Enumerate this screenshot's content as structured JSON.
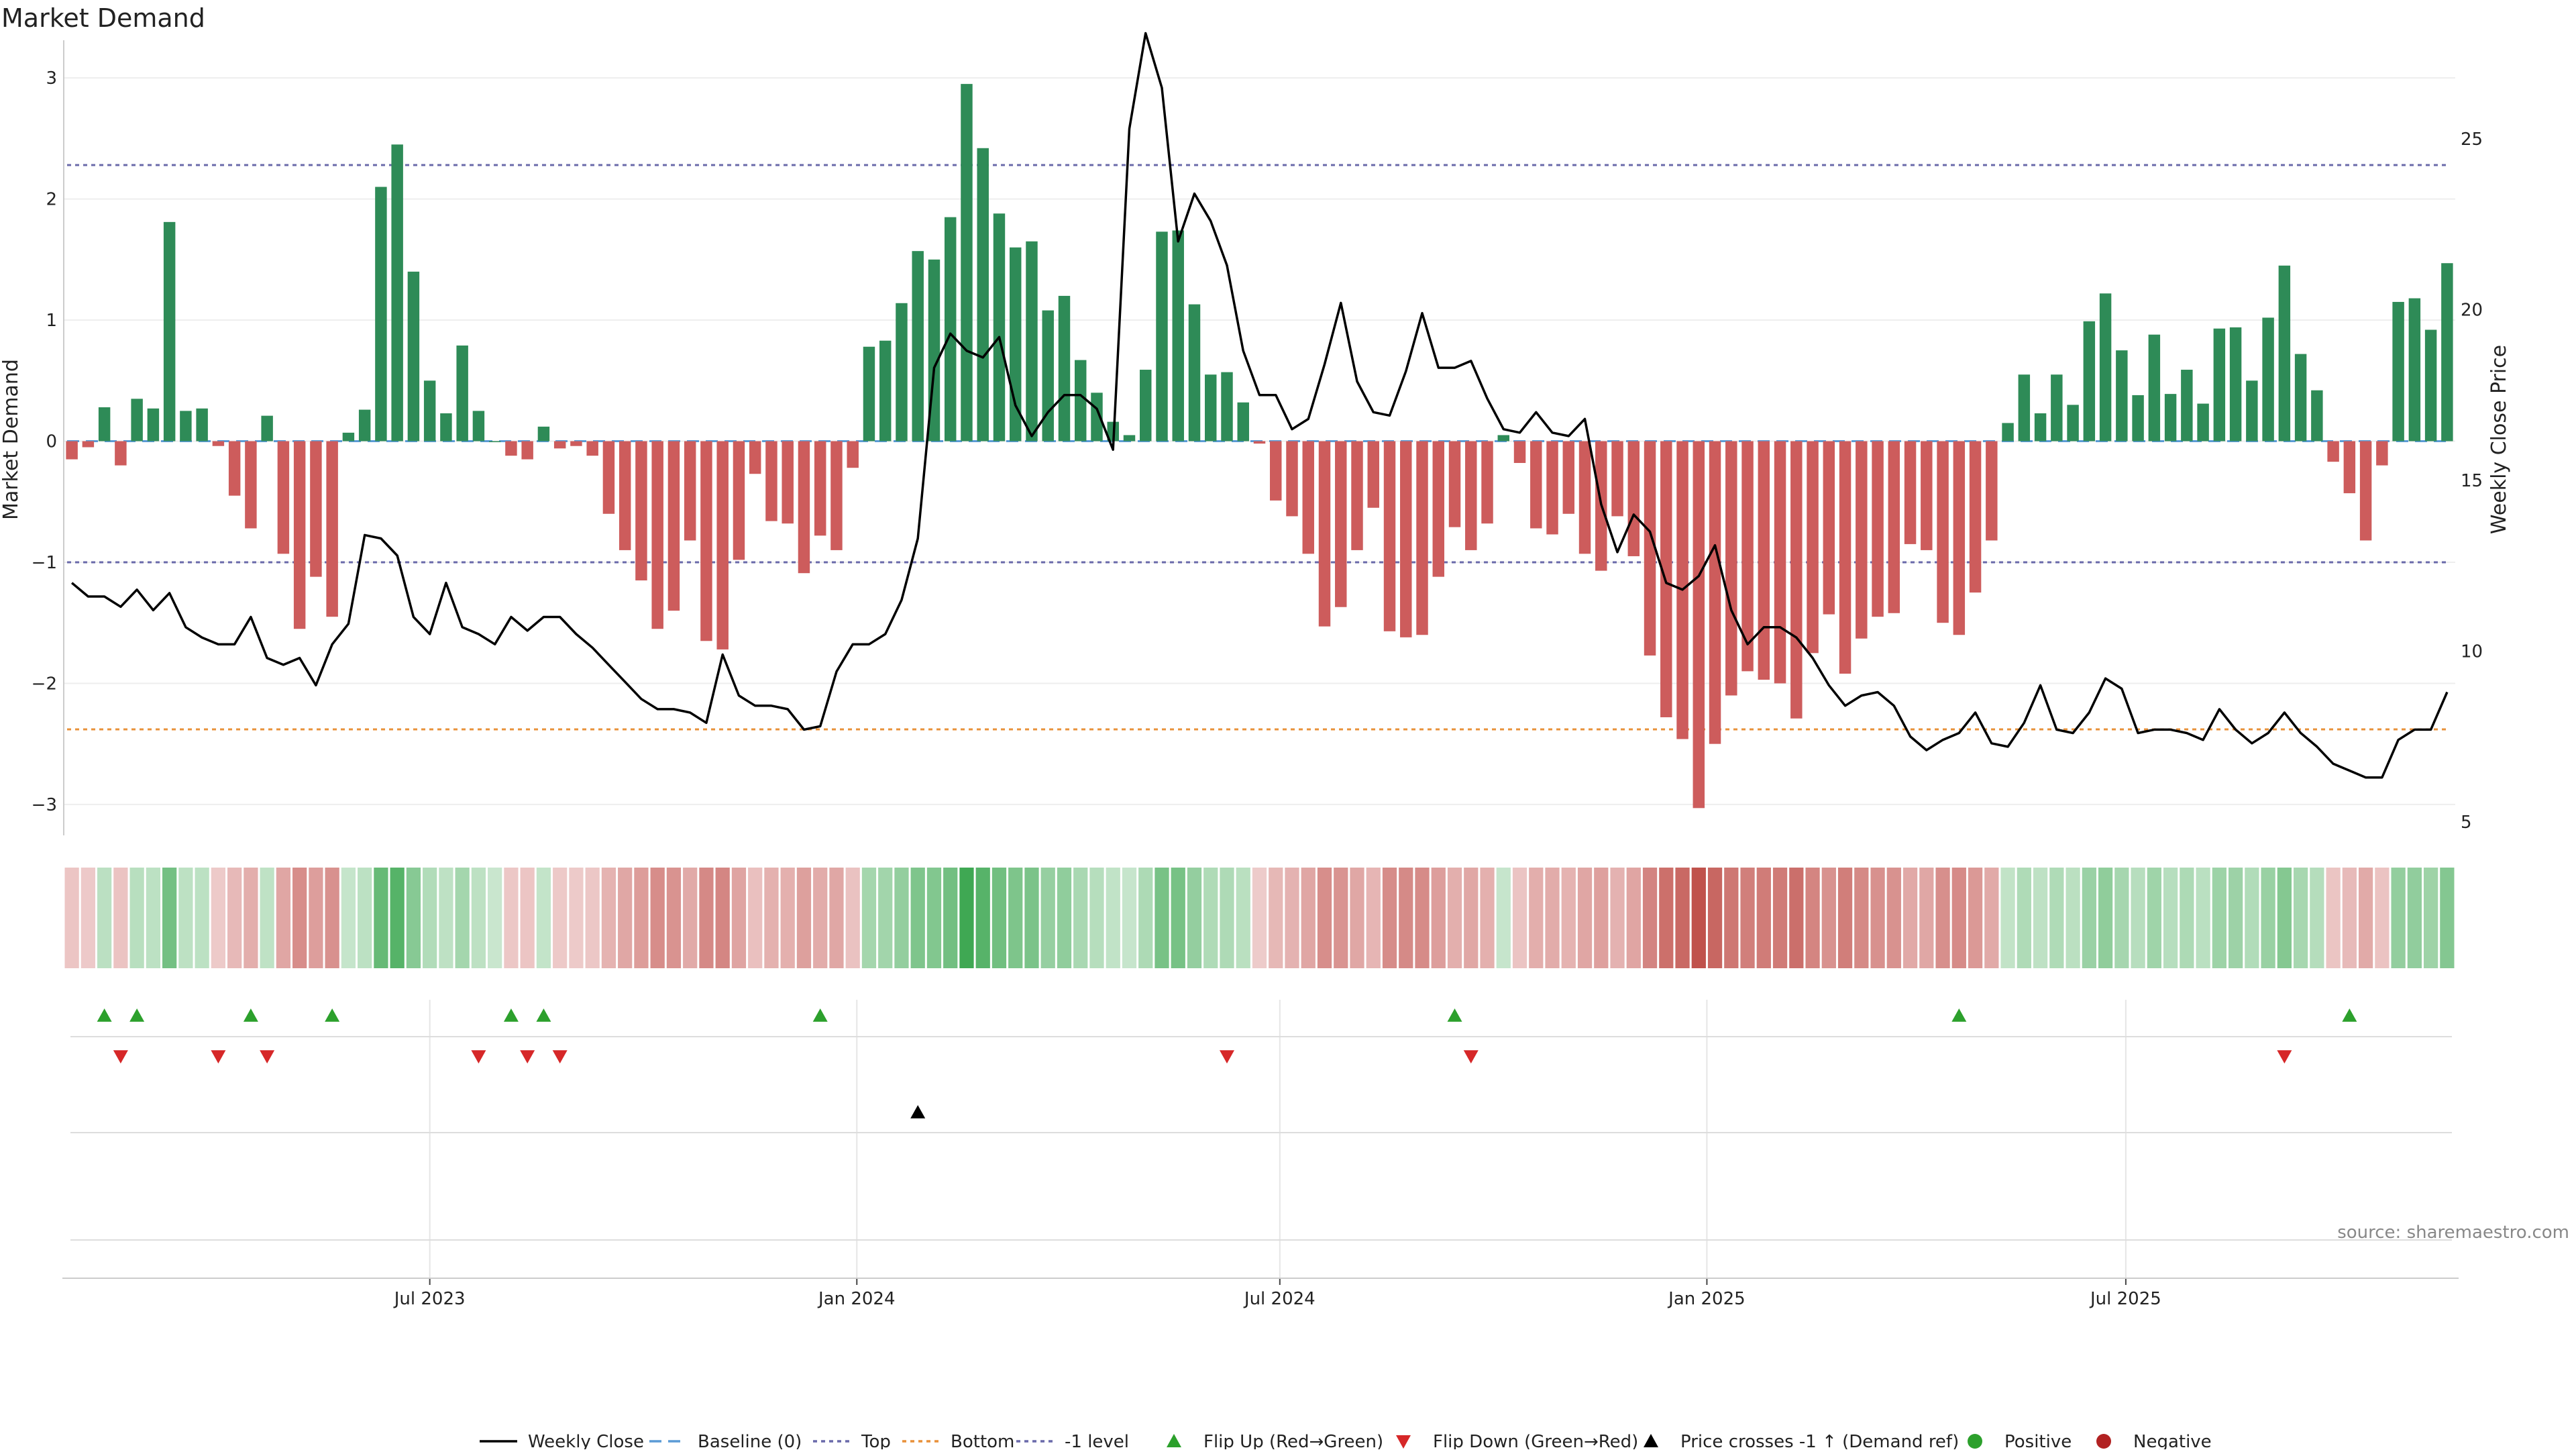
{
  "chart_data": {
    "type": "bar",
    "title": "Market Demand",
    "ylabel_left": "Market Demand",
    "ylabel_right": "Weekly Close Price",
    "ylim_left": [
      -3.2,
      3.2
    ],
    "ylim_right": [
      4.8,
      27.5
    ],
    "yticks_left": [
      3,
      2,
      1,
      0,
      -1,
      -2,
      -3
    ],
    "yticks_left_labels": [
      "3",
      "2",
      "1",
      "0",
      "−1",
      "−2",
      "−3"
    ],
    "yticks_right": [
      25,
      20,
      15,
      10,
      5
    ],
    "yticks_right_labels": [
      "25",
      "20",
      "15",
      "10",
      "5"
    ],
    "x_tick_labels": [
      "Jul 2023",
      "Jan 2024",
      "Jul 2024",
      "Jan 2025",
      "Jul 2025"
    ],
    "x_tick_index": [
      22,
      48.25,
      74.25,
      100.5,
      126.25
    ],
    "reference_lines": {
      "top": 2.28,
      "bottom": -2.38,
      "minus_one_level": -1.0,
      "baseline": 0
    },
    "demand": [
      -0.15,
      -0.05,
      0.28,
      -0.2,
      0.35,
      0.27,
      1.81,
      0.25,
      0.27,
      -0.04,
      -0.45,
      -0.72,
      0.21,
      -0.93,
      -1.55,
      -1.12,
      -1.45,
      0.07,
      0.26,
      2.1,
      2.45,
      1.4,
      0.5,
      0.23,
      0.79,
      0.25,
      0.0,
      -0.12,
      -0.15,
      0.12,
      -0.06,
      -0.04,
      -0.12,
      -0.6,
      -0.9,
      -1.15,
      -1.55,
      -1.4,
      -0.82,
      -1.65,
      -1.72,
      -0.98,
      -0.27,
      -0.66,
      -0.68,
      -1.09,
      -0.78,
      -0.9,
      -0.22,
      0.78,
      0.83,
      1.14,
      1.57,
      1.5,
      1.85,
      2.95,
      2.42,
      1.88,
      1.6,
      1.65,
      1.08,
      1.2,
      0.67,
      0.4,
      0.16,
      0.05,
      0.59,
      1.73,
      1.74,
      1.13,
      0.55,
      0.57,
      0.32,
      -0.02,
      -0.49,
      -0.62,
      -0.93,
      -1.53,
      -1.37,
      -0.9,
      -0.55,
      -1.57,
      -1.62,
      -1.6,
      -1.12,
      -0.71,
      -0.9,
      -0.68,
      0.05,
      -0.18,
      -0.72,
      -0.77,
      -0.6,
      -0.93,
      -1.07,
      -0.62,
      -0.95,
      -1.77,
      -2.28,
      -2.46,
      -3.03,
      -2.5,
      -2.1,
      -1.9,
      -1.97,
      -2.0,
      -2.29,
      -1.75,
      -1.43,
      -1.92,
      -1.63,
      -1.45,
      -1.42,
      -0.85,
      -0.9,
      -1.5,
      -1.6,
      -1.25,
      -0.82,
      0.15,
      0.55,
      0.23,
      0.55,
      0.3,
      0.99,
      1.22,
      0.75,
      0.38,
      0.88,
      0.39,
      0.59,
      0.31,
      0.93,
      0.94,
      0.5,
      1.02,
      1.45,
      0.72,
      0.42,
      -0.17,
      -0.43,
      -0.82,
      -0.2,
      1.15,
      1.18,
      0.92,
      1.47
    ],
    "weekly_close": [
      12.0,
      11.6,
      11.6,
      11.3,
      11.8,
      11.2,
      11.7,
      10.7,
      10.4,
      10.2,
      10.2,
      11.0,
      9.8,
      9.6,
      9.8,
      9.0,
      10.2,
      10.8,
      13.4,
      13.3,
      12.8,
      11.0,
      10.5,
      12.0,
      10.7,
      10.5,
      10.2,
      11.0,
      10.6,
      11.0,
      11.0,
      10.5,
      10.1,
      9.6,
      9.1,
      8.6,
      8.3,
      8.3,
      8.2,
      7.9,
      9.9,
      8.7,
      8.4,
      8.4,
      8.3,
      7.7,
      7.8,
      9.4,
      10.2,
      10.2,
      10.5,
      11.5,
      13.3,
      18.3,
      19.3,
      18.8,
      18.6,
      19.2,
      17.2,
      16.3,
      17.0,
      17.5,
      17.5,
      17.1,
      15.9,
      25.3,
      28.1,
      26.5,
      22.0,
      23.4,
      22.6,
      21.3,
      18.8,
      17.5,
      17.5,
      16.5,
      16.8,
      18.4,
      20.2,
      17.9,
      17.0,
      16.9,
      18.2,
      19.9,
      18.3,
      18.3,
      18.5,
      17.4,
      16.5,
      16.4,
      17.0,
      16.4,
      16.3,
      16.8,
      14.3,
      12.9,
      14.0,
      13.5,
      12.0,
      11.8,
      12.2,
      13.1,
      11.2,
      10.2,
      10.7,
      10.7,
      10.4,
      9.8,
      9.0,
      8.4,
      8.7,
      8.8,
      8.4,
      7.5,
      7.1,
      7.4,
      7.6,
      8.2,
      7.3,
      7.2,
      7.9,
      9.0,
      7.7,
      7.6,
      8.2,
      9.2,
      8.9,
      7.6,
      7.7,
      7.7,
      7.6,
      7.4,
      8.3,
      7.7,
      7.3,
      7.6,
      8.2,
      7.6,
      7.2,
      6.7,
      6.5,
      6.3,
      6.3,
      7.4,
      7.7,
      7.7,
      8.8
    ],
    "flip_up_index": [
      2,
      4,
      11,
      16,
      27,
      29,
      46,
      85,
      116,
      140
    ],
    "flip_down_index": [
      3,
      9,
      12,
      25,
      28,
      30,
      71,
      86,
      136
    ],
    "price_cross_index": [
      52
    ],
    "legend": [
      "Weekly Close",
      "Baseline (0)",
      "Top",
      "Bottom",
      "-1 level",
      "Flip Up (Red→Green)",
      "Flip Down (Green→Red)",
      "Price crosses -1 ↑ (Demand ref)",
      "Positive",
      "Negative"
    ],
    "legend_placement": "bottom-center",
    "source": "source: sharemaestro.com"
  },
  "colors": {
    "positive_bar": "#2e8b57",
    "negative_bar": "#cd5c5c",
    "price_line": "#000000",
    "top_line": "#6a6aaa",
    "bottom_line": "#e8913a",
    "minus_one_line": "#6a6aaa",
    "baseline": "#5b9bd5",
    "flip_up": "#2ca02c",
    "flip_down": "#d62728",
    "price_cross": "#000000",
    "positive_dot": "#2ca02c",
    "negative_dot": "#b22222"
  }
}
